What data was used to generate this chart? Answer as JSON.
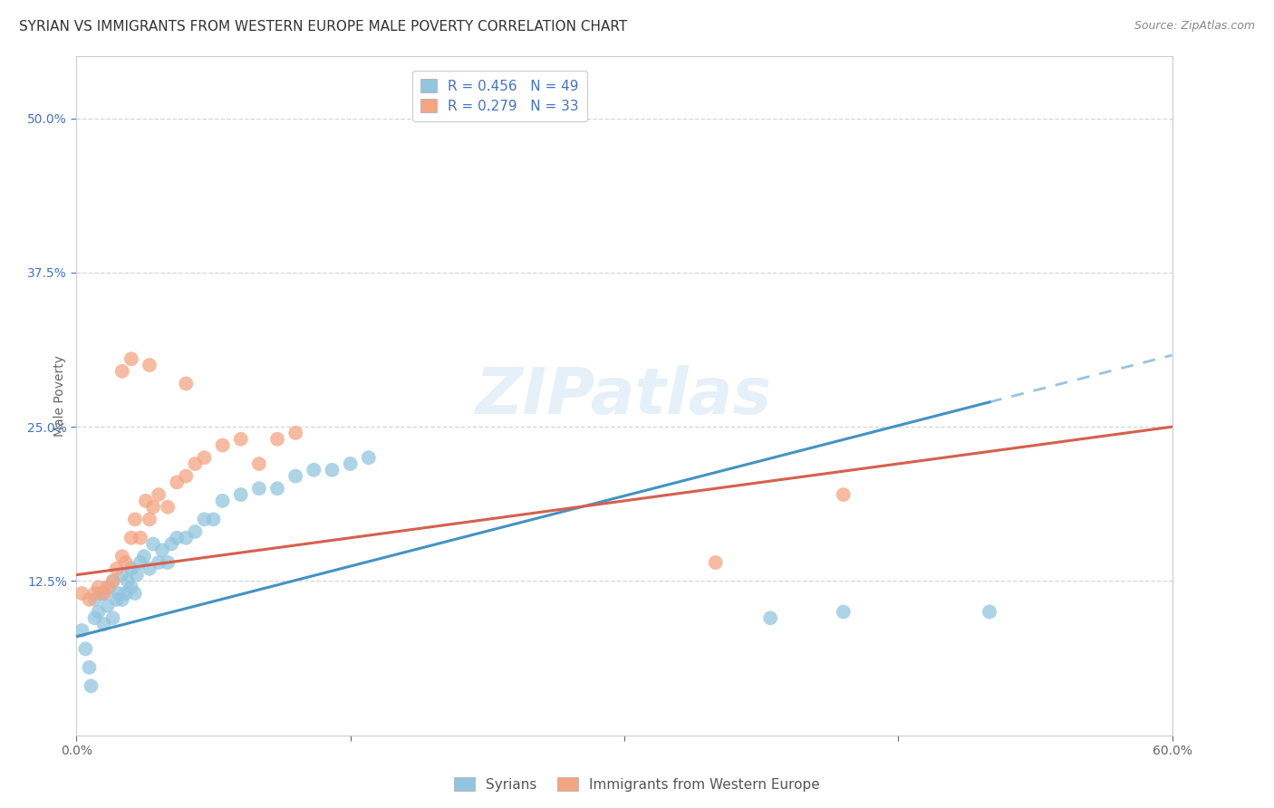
{
  "title": "SYRIAN VS IMMIGRANTS FROM WESTERN EUROPE MALE POVERTY CORRELATION CHART",
  "source": "Source: ZipAtlas.com",
  "ylabel": "Male Poverty",
  "xlim": [
    0.0,
    0.6
  ],
  "ylim": [
    0.0,
    0.55
  ],
  "yticks": [
    0.125,
    0.25,
    0.375,
    0.5
  ],
  "ytick_labels": [
    "12.5%",
    "25.0%",
    "37.5%",
    "50.0%"
  ],
  "xtick_labels": [
    "0.0%",
    "",
    "",
    "",
    "60.0%"
  ],
  "watermark": "ZIPatlas",
  "blue_R": 0.456,
  "blue_N": 49,
  "pink_R": 0.279,
  "pink_N": 33,
  "blue_color": "#92c5de",
  "pink_color": "#f4a582",
  "blue_line_color": "#4393c3",
  "pink_line_color": "#d6604d",
  "background_color": "#ffffff",
  "grid_color": "#cccccc",
  "blue_scatter_x": [
    0.003,
    0.005,
    0.007,
    0.008,
    0.01,
    0.01,
    0.012,
    0.013,
    0.015,
    0.015,
    0.017,
    0.018,
    0.02,
    0.02,
    0.022,
    0.023,
    0.025,
    0.025,
    0.027,
    0.028,
    0.03,
    0.03,
    0.032,
    0.033,
    0.035,
    0.037,
    0.04,
    0.042,
    0.045,
    0.047,
    0.05,
    0.052,
    0.055,
    0.06,
    0.065,
    0.07,
    0.075,
    0.08,
    0.09,
    0.1,
    0.11,
    0.12,
    0.13,
    0.14,
    0.15,
    0.16,
    0.38,
    0.42,
    0.5
  ],
  "blue_scatter_y": [
    0.085,
    0.07,
    0.055,
    0.04,
    0.095,
    0.11,
    0.1,
    0.115,
    0.09,
    0.115,
    0.105,
    0.12,
    0.095,
    0.125,
    0.11,
    0.115,
    0.11,
    0.13,
    0.115,
    0.125,
    0.12,
    0.135,
    0.115,
    0.13,
    0.14,
    0.145,
    0.135,
    0.155,
    0.14,
    0.15,
    0.14,
    0.155,
    0.16,
    0.16,
    0.165,
    0.175,
    0.175,
    0.19,
    0.195,
    0.2,
    0.2,
    0.21,
    0.215,
    0.215,
    0.22,
    0.225,
    0.095,
    0.1,
    0.1
  ],
  "pink_scatter_x": [
    0.003,
    0.007,
    0.01,
    0.012,
    0.015,
    0.017,
    0.02,
    0.022,
    0.025,
    0.027,
    0.03,
    0.032,
    0.035,
    0.038,
    0.04,
    0.042,
    0.045,
    0.05,
    0.055,
    0.06,
    0.065,
    0.07,
    0.08,
    0.09,
    0.1,
    0.11,
    0.12,
    0.025,
    0.03,
    0.04,
    0.06,
    0.35,
    0.42
  ],
  "pink_scatter_y": [
    0.115,
    0.11,
    0.115,
    0.12,
    0.115,
    0.12,
    0.125,
    0.135,
    0.145,
    0.14,
    0.16,
    0.175,
    0.16,
    0.19,
    0.175,
    0.185,
    0.195,
    0.185,
    0.205,
    0.21,
    0.22,
    0.225,
    0.235,
    0.24,
    0.22,
    0.24,
    0.245,
    0.295,
    0.305,
    0.3,
    0.285,
    0.14,
    0.195
  ],
  "title_fontsize": 11,
  "axis_label_fontsize": 10,
  "tick_fontsize": 10,
  "legend_fontsize": 11,
  "source_fontsize": 9,
  "blue_line_intercept": 0.08,
  "blue_line_slope": 0.38,
  "pink_line_intercept": 0.13,
  "pink_line_slope": 0.2
}
